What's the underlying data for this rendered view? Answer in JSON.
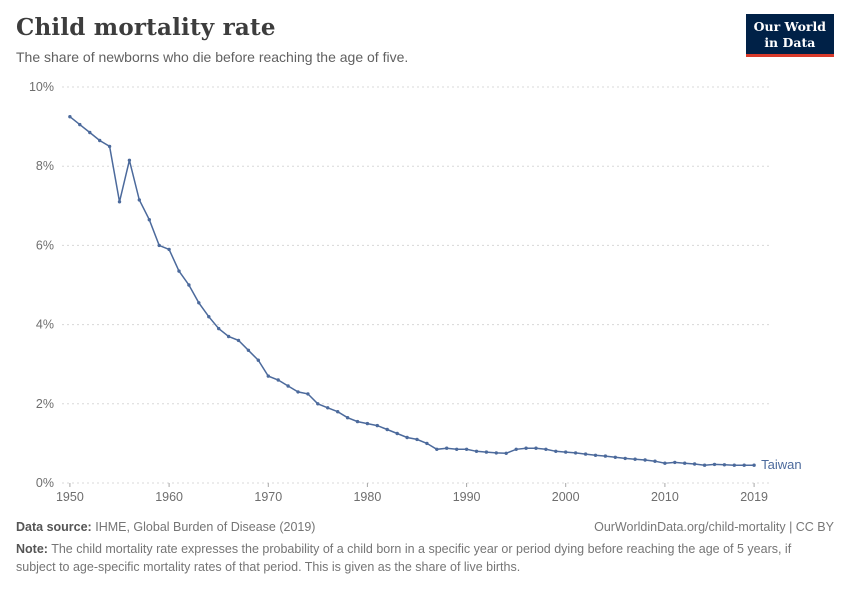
{
  "header": {
    "title": "Child mortality rate",
    "subtitle": "The share of newborns who die before reaching the age of five.",
    "logo": {
      "line1": "Our World",
      "line2": "in Data"
    }
  },
  "chart_data": {
    "type": "line",
    "title": "Child mortality rate",
    "subtitle": "The share of newborns who die before reaching the age of five.",
    "xlabel": "",
    "ylabel": "",
    "xlim": [
      1949.2,
      2020.6
    ],
    "ylim": [
      0,
      10
    ],
    "yticks": [
      0,
      2,
      4,
      6,
      8,
      10
    ],
    "ytick_labels": [
      "0%",
      "2%",
      "4%",
      "6%",
      "8%",
      "10%"
    ],
    "xticks": [
      1950,
      1960,
      1970,
      1980,
      1990,
      2000,
      2010,
      2019
    ],
    "grid": "horizontal-dashed",
    "legend": "end-of-line-label",
    "series": [
      {
        "name": "Taiwan",
        "color": "#4c6a9c",
        "x": [
          1950,
          1951,
          1952,
          1953,
          1954,
          1955,
          1956,
          1957,
          1958,
          1959,
          1960,
          1961,
          1962,
          1963,
          1964,
          1965,
          1966,
          1967,
          1968,
          1969,
          1970,
          1971,
          1972,
          1973,
          1974,
          1975,
          1976,
          1977,
          1978,
          1979,
          1980,
          1981,
          1982,
          1983,
          1984,
          1985,
          1986,
          1987,
          1988,
          1989,
          1990,
          1991,
          1992,
          1993,
          1994,
          1995,
          1996,
          1997,
          1998,
          1999,
          2000,
          2001,
          2002,
          2003,
          2004,
          2005,
          2006,
          2007,
          2008,
          2009,
          2010,
          2011,
          2012,
          2013,
          2014,
          2015,
          2016,
          2017,
          2018,
          2019
        ],
        "values": [
          9.25,
          9.05,
          8.85,
          8.65,
          8.5,
          7.1,
          8.15,
          7.15,
          6.65,
          6.0,
          5.9,
          5.35,
          5.0,
          4.55,
          4.2,
          3.9,
          3.7,
          3.6,
          3.35,
          3.1,
          2.7,
          2.6,
          2.45,
          2.3,
          2.25,
          2.0,
          1.9,
          1.8,
          1.65,
          1.55,
          1.5,
          1.45,
          1.35,
          1.25,
          1.15,
          1.1,
          1.0,
          0.85,
          0.88,
          0.85,
          0.85,
          0.8,
          0.78,
          0.76,
          0.75,
          0.85,
          0.88,
          0.88,
          0.85,
          0.8,
          0.78,
          0.76,
          0.73,
          0.7,
          0.68,
          0.65,
          0.62,
          0.6,
          0.58,
          0.55,
          0.5,
          0.52,
          0.5,
          0.48,
          0.45,
          0.47,
          0.46,
          0.45,
          0.45,
          0.45
        ]
      }
    ]
  },
  "footer": {
    "source_label": "Data source:",
    "source_text": "IHME, Global Burden of Disease (2019)",
    "attribution": "OurWorldinData.org/child-mortality | CC BY",
    "note_label": "Note:",
    "note_text": "The child mortality rate expresses the probability of a child born in a specific year or period dying before reaching the age of 5 years, if subject to age-specific mortality rates of that period. This is given as the share of live births."
  }
}
